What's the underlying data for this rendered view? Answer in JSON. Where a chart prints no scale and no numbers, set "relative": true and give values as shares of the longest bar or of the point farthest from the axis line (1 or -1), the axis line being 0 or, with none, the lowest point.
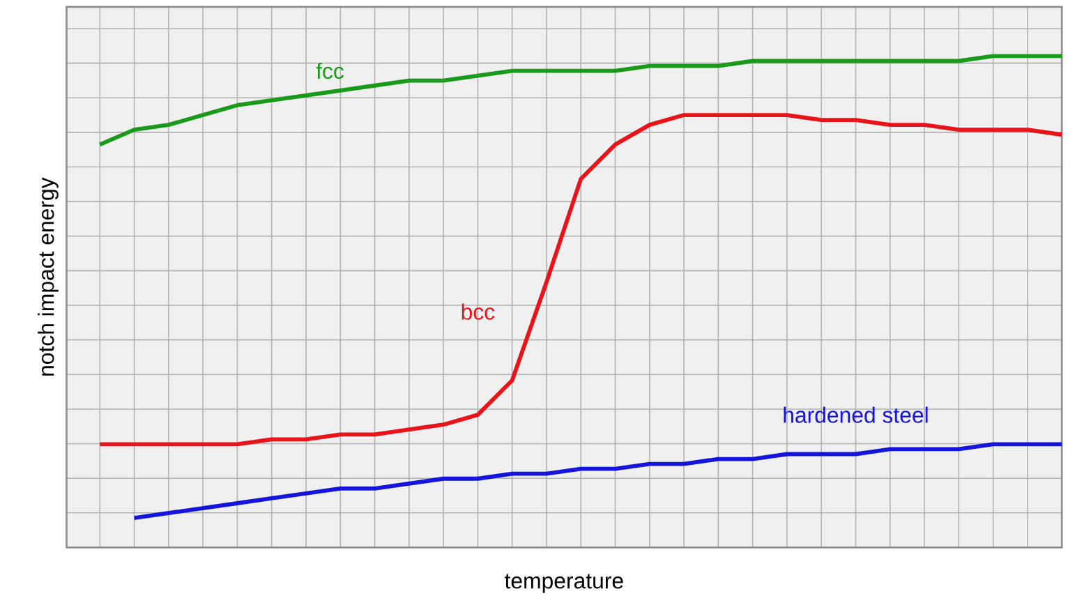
{
  "chart_data": {
    "type": "line",
    "relative": true,
    "xlabel": "temperature",
    "ylabel": "notch impact energy",
    "grid": true,
    "legend": false,
    "line_style": "solid",
    "marker": "none",
    "categories": [
      null,
      null,
      null,
      null,
      null,
      null,
      null,
      null,
      null,
      null,
      null,
      null,
      null,
      null,
      null,
      null,
      null,
      null,
      null,
      null,
      null,
      null,
      null,
      null,
      null,
      null,
      null,
      null,
      null
    ],
    "series": [
      {
        "name": "fcc",
        "color": "#1a9a1a",
        "values": [
          0.82,
          0.85,
          0.86,
          0.88,
          0.9,
          0.91,
          0.92,
          0.93,
          0.94,
          0.95,
          0.95,
          0.96,
          0.97,
          0.97,
          0.97,
          0.97,
          0.98,
          0.98,
          0.98,
          0.99,
          0.99,
          0.99,
          0.99,
          0.99,
          0.99,
          0.99,
          1.0,
          1.0,
          1.0
        ]
      },
      {
        "name": "bcc",
        "color": "#e8141a",
        "values": [
          0.21,
          0.21,
          0.21,
          0.21,
          0.21,
          0.22,
          0.22,
          0.23,
          0.23,
          0.24,
          0.25,
          0.27,
          0.34,
          0.54,
          0.75,
          0.82,
          0.86,
          0.88,
          0.88,
          0.88,
          0.88,
          0.87,
          0.87,
          0.86,
          0.86,
          0.85,
          0.85,
          0.85,
          0.84
        ]
      },
      {
        "name": "hardened steel",
        "color": "#1414dc",
        "values": [
          null,
          0.06,
          0.07,
          0.08,
          0.09,
          0.1,
          0.11,
          0.12,
          0.12,
          0.13,
          0.14,
          0.14,
          0.15,
          0.15,
          0.16,
          0.16,
          0.17,
          0.17,
          0.18,
          0.18,
          0.19,
          0.19,
          0.19,
          0.2,
          0.2,
          0.2,
          0.21,
          0.21,
          0.21
        ]
      }
    ]
  }
}
